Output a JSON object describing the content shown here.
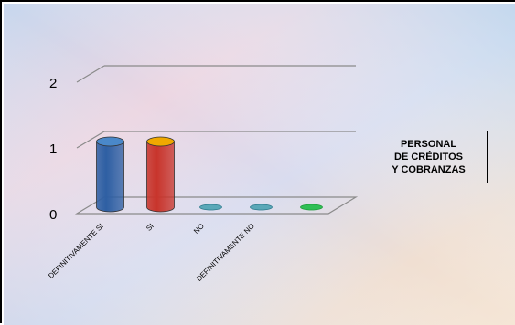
{
  "chart_data": {
    "type": "bar",
    "style": "3d-cylinder",
    "categories": [
      "DEFINITIVAMENTE SI",
      "SI",
      "NO",
      "DEFINITIVAMENTE NO",
      ""
    ],
    "values": [
      1,
      1,
      0,
      0,
      0
    ],
    "bar_colors": [
      "#2e5fa3",
      "#c8342b",
      "#2e7a8c",
      "#2e7a8c",
      "#1e9a3a"
    ],
    "bar_top_colors": [
      "#4a88c9",
      "#f0a800",
      "#5aa8b8",
      "#5aa8b8",
      "#2fbf55"
    ],
    "yticks": [
      "0",
      "1",
      "2"
    ],
    "ylim": [
      0,
      2
    ],
    "grid": true,
    "legend_placement": "right",
    "legend_lines": [
      "PERSONAL",
      "DE CRÉDITOS",
      "Y COBRANZAS"
    ],
    "background": "gradient pastel (blue, pink, lavender, peach)"
  }
}
